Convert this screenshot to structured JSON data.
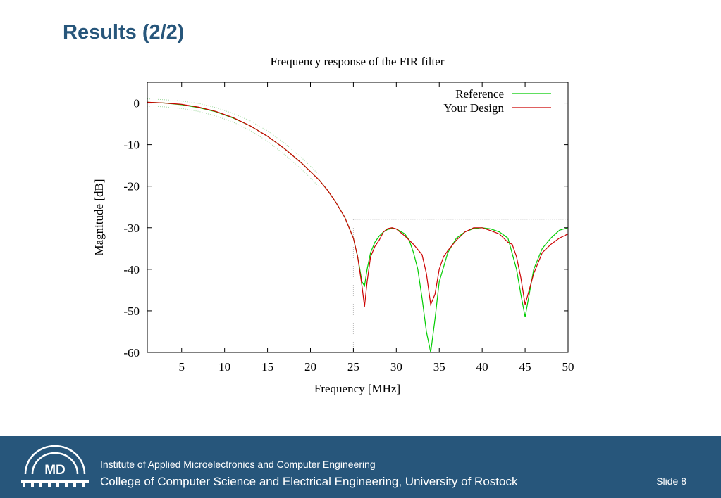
{
  "slide": {
    "title": "Results (2/2)"
  },
  "colors": {
    "brand": "#27567b",
    "reference": "#00cc00",
    "design": "#cc0000",
    "guide": "#a0d8a0"
  },
  "chart_data": {
    "type": "line",
    "title": "Frequency response of the FIR filter",
    "xlabel": "Frequency [MHz]",
    "ylabel": "Magnitude [dB]",
    "xlim": [
      1,
      50
    ],
    "ylim": [
      -60,
      5
    ],
    "xticks": [
      5,
      10,
      15,
      20,
      25,
      30,
      35,
      40,
      45,
      50
    ],
    "yticks": [
      0,
      -10,
      -20,
      -30,
      -40,
      -50,
      -60
    ],
    "grid": false,
    "legend_position": "top-right",
    "series": [
      {
        "name": "Reference",
        "color": "#00cc00",
        "x": [
          1,
          3,
          5,
          7,
          9,
          11,
          13,
          15,
          17,
          19,
          20,
          21,
          22,
          23,
          24,
          25,
          25.5,
          26,
          26.3,
          26.6,
          27,
          27.5,
          28,
          28.5,
          29,
          29.5,
          30,
          31,
          31.5,
          32,
          32.5,
          33,
          33.5,
          34,
          34.5,
          35,
          36,
          37,
          38,
          39,
          40,
          41,
          42,
          43,
          44,
          44.5,
          45,
          46,
          47,
          48,
          49,
          50
        ],
        "y": [
          0.2,
          0,
          -0.4,
          -1.1,
          -2.1,
          -3.6,
          -5.5,
          -8,
          -11,
          -14.5,
          -16.5,
          -18.5,
          -21,
          -24,
          -27.5,
          -32.5,
          -37,
          -43,
          -44,
          -40,
          -36,
          -33.5,
          -32,
          -31,
          -30.4,
          -30.2,
          -30.3,
          -31.5,
          -33,
          -36,
          -40,
          -47,
          -55,
          -60,
          -52,
          -43,
          -36,
          -32.5,
          -31,
          -30.2,
          -30,
          -30.3,
          -31,
          -32.5,
          -40,
          -46,
          -51.5,
          -40,
          -35,
          -32.5,
          -30.6,
          -30
        ]
      },
      {
        "name": "Your Design",
        "color": "#cc0000",
        "x": [
          1,
          3,
          5,
          7,
          9,
          11,
          13,
          15,
          17,
          19,
          20,
          21,
          22,
          23,
          24,
          25,
          25.5,
          26,
          26.3,
          26.6,
          27,
          27.5,
          28,
          28.5,
          29,
          29.5,
          30,
          31,
          32,
          33,
          33.5,
          34,
          34.5,
          35,
          35.5,
          36,
          37,
          38,
          39,
          40,
          41,
          42,
          43,
          43.5,
          44,
          44.5,
          45,
          46,
          47,
          48,
          49,
          50
        ],
        "y": [
          0.2,
          0,
          -0.3,
          -1,
          -2,
          -3.5,
          -5.5,
          -8,
          -11,
          -14.5,
          -16.5,
          -18.5,
          -21,
          -24,
          -27.5,
          -32.5,
          -37,
          -44,
          -49,
          -43,
          -37,
          -34.5,
          -33,
          -31,
          -30.2,
          -30,
          -30.3,
          -32,
          -34,
          -36.5,
          -41,
          -48.5,
          -46,
          -40,
          -37,
          -35.5,
          -33,
          -31,
          -30,
          -30,
          -30.7,
          -31.5,
          -33.5,
          -34,
          -37,
          -42,
          -48.5,
          -41,
          -36,
          -34,
          -32.5,
          -31.5
        ]
      }
    ],
    "reference_lines": {
      "passband_upper": [
        1.0,
        0.8,
        0.5,
        -0.1,
        -1.1,
        -2.5,
        -4.3,
        -6.7,
        -9.7,
        -13.2,
        -15.2,
        -17.3
      ],
      "passband_lower": [
        -0.7,
        -0.9,
        -1.3,
        -2.0,
        -3.1,
        -4.6,
        -6.6,
        -9.2,
        -12.4,
        -16.0,
        -18.0,
        -20.2
      ],
      "passband_x": [
        1,
        3,
        5,
        7,
        9,
        11,
        13,
        15,
        17,
        19,
        20,
        21
      ],
      "stopband_level": -28,
      "stopband_start": 25
    }
  },
  "footer": {
    "logo_text": "MD",
    "institute": "Institute of Applied Microelectronics and Computer Engineering",
    "college": "College of Computer Science and Electrical Engineering, University of Rostock",
    "slide_label": "Slide 8"
  }
}
